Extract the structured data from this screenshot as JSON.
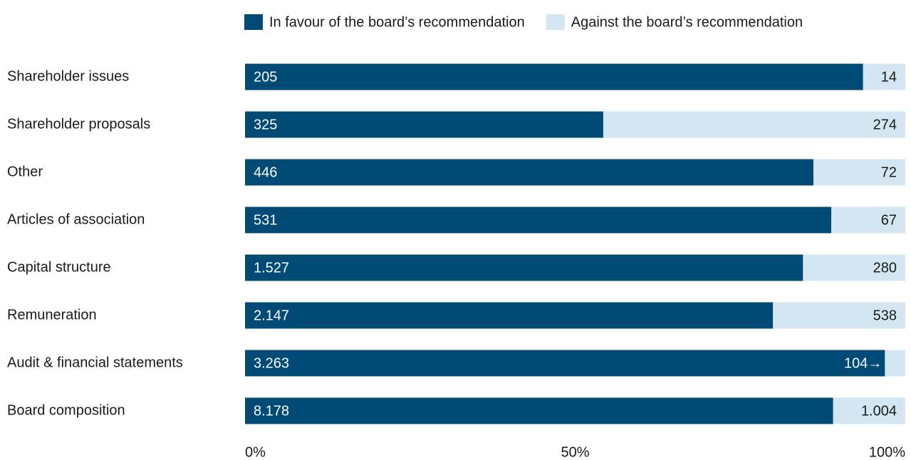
{
  "chart_data": {
    "type": "bar",
    "orientation": "horizontal",
    "stacking": "percent",
    "categories": [
      "Shareholder issues",
      "Shareholder proposals",
      "Other",
      "Articles of association",
      "Capital structure",
      "Remuneration",
      "Audit & financial statements",
      "Board composition"
    ],
    "series": [
      {
        "name": "In favour of the board’s recommendation",
        "color": "#004b76",
        "label_color": "#ffffff",
        "values": [
          205,
          325,
          446,
          531,
          1527,
          2147,
          3263,
          8178
        ],
        "value_labels": [
          "205",
          "325",
          "446",
          "531",
          "1.527",
          "2.147",
          "3.263",
          "8.178"
        ]
      },
      {
        "name": "Against the board’s recommendation",
        "color": "#d4e6f1",
        "label_color": "#1a1a1a",
        "values": [
          14,
          274,
          72,
          67,
          280,
          538,
          104,
          1004
        ],
        "value_labels": [
          "14",
          "274",
          "72",
          "67",
          "280",
          "538",
          "104→",
          "1.004"
        ]
      }
    ],
    "xlim": [
      0,
      100
    ],
    "xticks": [
      {
        "value": 0,
        "label": "0%"
      },
      {
        "value": 50,
        "label": "50%"
      },
      {
        "value": 100,
        "label": "100%"
      }
    ],
    "legend": "top"
  }
}
